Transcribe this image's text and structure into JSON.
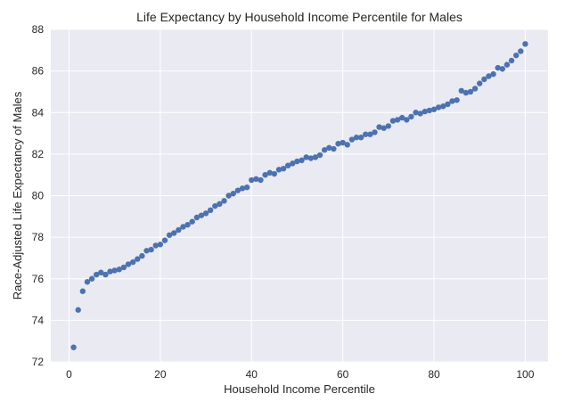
{
  "chart_data": {
    "type": "scatter",
    "title": "Life Expectancy by Household Income Percentile for Males",
    "xlabel": "Household Income Percentile",
    "ylabel": "Race-Adjusted Life Expectancy of Males",
    "xlim": [
      -4,
      105
    ],
    "ylim": [
      72,
      88
    ],
    "xticks": [
      0,
      20,
      40,
      60,
      80,
      100
    ],
    "yticks": [
      72,
      74,
      76,
      78,
      80,
      82,
      84,
      86,
      88
    ],
    "xtick_labels": [
      "0",
      "20",
      "40",
      "60",
      "80",
      "100"
    ],
    "ytick_labels": [
      "72",
      "74",
      "76",
      "78",
      "80",
      "82",
      "84",
      "86",
      "88"
    ],
    "grid": true,
    "background": "#eaeaf2",
    "marker_color": "#4c72b0",
    "series": [
      {
        "x": [
          1,
          2,
          3,
          4,
          5,
          6,
          7,
          8,
          9,
          10,
          11,
          12,
          13,
          14,
          15,
          16,
          17,
          18,
          19,
          20,
          21,
          22,
          23,
          24,
          25,
          26,
          27,
          28,
          29,
          30,
          31,
          32,
          33,
          34,
          35,
          36,
          37,
          38,
          39,
          40,
          41,
          42,
          43,
          44,
          45,
          46,
          47,
          48,
          49,
          50,
          51,
          52,
          53,
          54,
          55,
          56,
          57,
          58,
          59,
          60,
          61,
          62,
          63,
          64,
          65,
          66,
          67,
          68,
          69,
          70,
          71,
          72,
          73,
          74,
          75,
          76,
          77,
          78,
          79,
          80,
          81,
          82,
          83,
          84,
          85,
          86,
          87,
          88,
          89,
          90,
          91,
          92,
          93,
          94,
          95,
          96,
          97,
          98,
          99,
          100
        ],
        "y": [
          72.7,
          74.5,
          75.4,
          75.85,
          76.0,
          76.2,
          76.3,
          76.2,
          76.35,
          76.4,
          76.45,
          76.55,
          76.7,
          76.8,
          76.95,
          77.1,
          77.35,
          77.4,
          77.6,
          77.65,
          77.85,
          78.1,
          78.2,
          78.35,
          78.5,
          78.6,
          78.75,
          78.95,
          79.05,
          79.15,
          79.3,
          79.5,
          79.6,
          79.75,
          80.0,
          80.1,
          80.25,
          80.35,
          80.4,
          80.75,
          80.8,
          80.75,
          81.0,
          81.1,
          81.05,
          81.25,
          81.3,
          81.45,
          81.55,
          81.65,
          81.7,
          81.85,
          81.8,
          81.85,
          81.95,
          82.2,
          82.3,
          82.25,
          82.5,
          82.55,
          82.45,
          82.7,
          82.8,
          82.8,
          82.95,
          82.95,
          83.05,
          83.3,
          83.25,
          83.35,
          83.6,
          83.65,
          83.75,
          83.65,
          83.8,
          84.0,
          83.95,
          84.05,
          84.1,
          84.15,
          84.25,
          84.3,
          84.4,
          84.55,
          84.6,
          85.05,
          84.95,
          85.0,
          85.15,
          85.4,
          85.6,
          85.75,
          85.85,
          86.15,
          86.1,
          86.3,
          86.5,
          86.75,
          86.95,
          87.3
        ]
      }
    ]
  }
}
